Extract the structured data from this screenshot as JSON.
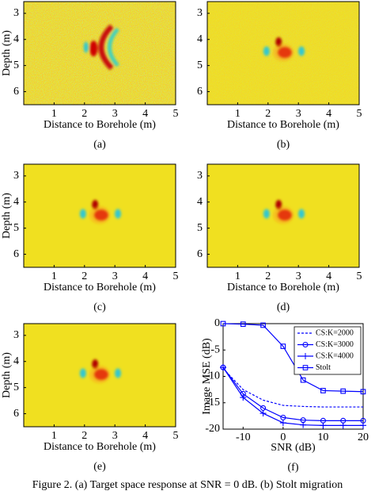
{
  "panels": [
    {
      "label": "(a)",
      "ylabel": "Depth (m)",
      "xlabel": "Distance to Borehole (m)",
      "xlim": [
        0,
        5
      ],
      "ylim": [
        2.55,
        6.5
      ],
      "xticks": [
        1,
        2,
        3,
        4,
        5
      ],
      "yticks": [
        3,
        4,
        5,
        6
      ]
    },
    {
      "label": "(b)",
      "xlabel": "Distance to Borehole (m)",
      "xlim": [
        0,
        5
      ],
      "ylim": [
        2.55,
        6.5
      ],
      "xticks": [
        1,
        2,
        3,
        4,
        5
      ],
      "yticks": [
        3,
        4,
        5,
        6
      ]
    },
    {
      "label": "(c)",
      "ylabel": "Depth (m)",
      "xlabel": "Distance to Borehole (m)",
      "xlim": [
        0,
        5
      ],
      "ylim": [
        2.55,
        6.5
      ],
      "xticks": [
        1,
        2,
        3,
        4,
        5
      ],
      "yticks": [
        3,
        4,
        5,
        6
      ]
    },
    {
      "label": "(d)",
      "xlabel": "Distance to Borehole (m)",
      "xlim": [
        0,
        5
      ],
      "ylim": [
        2.55,
        6.5
      ],
      "xticks": [
        1,
        2,
        3,
        4,
        5
      ],
      "yticks": [
        3,
        4,
        5,
        6
      ]
    },
    {
      "label": "(e)",
      "ylabel": "Depth (m)",
      "xlabel": "Distance to Borehole (m)",
      "xlim": [
        0,
        5
      ],
      "ylim": [
        2.55,
        6.5
      ],
      "xticks": [
        1,
        2,
        3,
        4,
        5
      ],
      "yticks": [
        3,
        4,
        5,
        6
      ]
    }
  ],
  "chart_data": {
    "type": "line",
    "label": "(f)",
    "xlabel": "SNR (dB)",
    "ylabel": "Image MSE (dB)",
    "x": [
      -15,
      -10,
      -5,
      0,
      5,
      10,
      15,
      20
    ],
    "xlim": [
      -15,
      20
    ],
    "ylim": [
      -20,
      0
    ],
    "xticks": [
      -10,
      0,
      10,
      20
    ],
    "yticks": [
      0,
      -5,
      -10,
      -15,
      -20
    ],
    "legend": "top-right",
    "series": [
      {
        "name": "CS:K=2000",
        "color": "#0000ff",
        "dash": true,
        "marker": "none",
        "values": [
          -8.5,
          -12.5,
          -14.5,
          -15.5,
          -15.7,
          -15.8,
          -15.8,
          -15.8
        ]
      },
      {
        "name": "CS:K=3000",
        "color": "#0000ff",
        "dash": false,
        "marker": "circle",
        "values": [
          -8.3,
          -13.3,
          -16.0,
          -17.8,
          -18.3,
          -18.4,
          -18.4,
          -18.4
        ]
      },
      {
        "name": "CS:K=4000",
        "color": "#0000ff",
        "dash": false,
        "marker": "plus",
        "values": [
          -8.3,
          -14.0,
          -17.0,
          -18.8,
          -19.2,
          -19.3,
          -19.3,
          -19.3
        ]
      },
      {
        "name": "Stolt",
        "color": "#0000ff",
        "dash": false,
        "marker": "square",
        "values": [
          0,
          -0.1,
          -0.3,
          -4.3,
          -10.7,
          -12.7,
          -12.8,
          -12.9
        ]
      }
    ]
  },
  "caption": "Figure 2.     (a) Target space response at SNR = 0 dB. (b) Stolt migration"
}
